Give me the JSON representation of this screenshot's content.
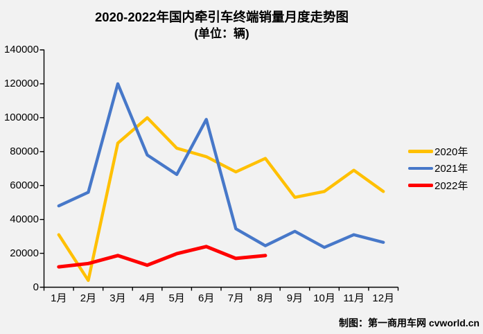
{
  "page": {
    "background": "#f2f2f2"
  },
  "header": {
    "title": "2020-2022年国内牵引车终端销量月度走势图",
    "subtitle": "(单位：辆)"
  },
  "footer": {
    "credit": "制图：第一商用车网 cvworld.cn"
  },
  "chart_data": {
    "type": "line",
    "title": "2020-2022年国内牵引车终端销量月度走势图",
    "subtitle": "(单位：辆)",
    "categories": [
      "1月",
      "2月",
      "3月",
      "4月",
      "5月",
      "6月",
      "7月",
      "8月",
      "9月",
      "10月",
      "11月",
      "12月"
    ],
    "series": [
      {
        "name": "2020年",
        "color": "#FFC000",
        "values": [
          31000,
          4000,
          85000,
          100000,
          82000,
          77000,
          68000,
          76000,
          53000,
          56500,
          69000,
          56500
        ]
      },
      {
        "name": "2021年",
        "color": "#4778C9",
        "values": [
          48000,
          56000,
          120000,
          78000,
          66500,
          99000,
          34500,
          24500,
          33000,
          23500,
          31000,
          26500
        ]
      },
      {
        "name": "2022年",
        "color": "#FF0000",
        "values": [
          12000,
          14000,
          18700,
          13000,
          19800,
          24000,
          17000,
          18700
        ]
      }
    ],
    "xlabel": "",
    "ylabel": "",
    "ylim": [
      0,
      140000
    ],
    "ytick_step": 20000,
    "grid": false,
    "legend_position": "right",
    "axis_color": "#000000"
  }
}
